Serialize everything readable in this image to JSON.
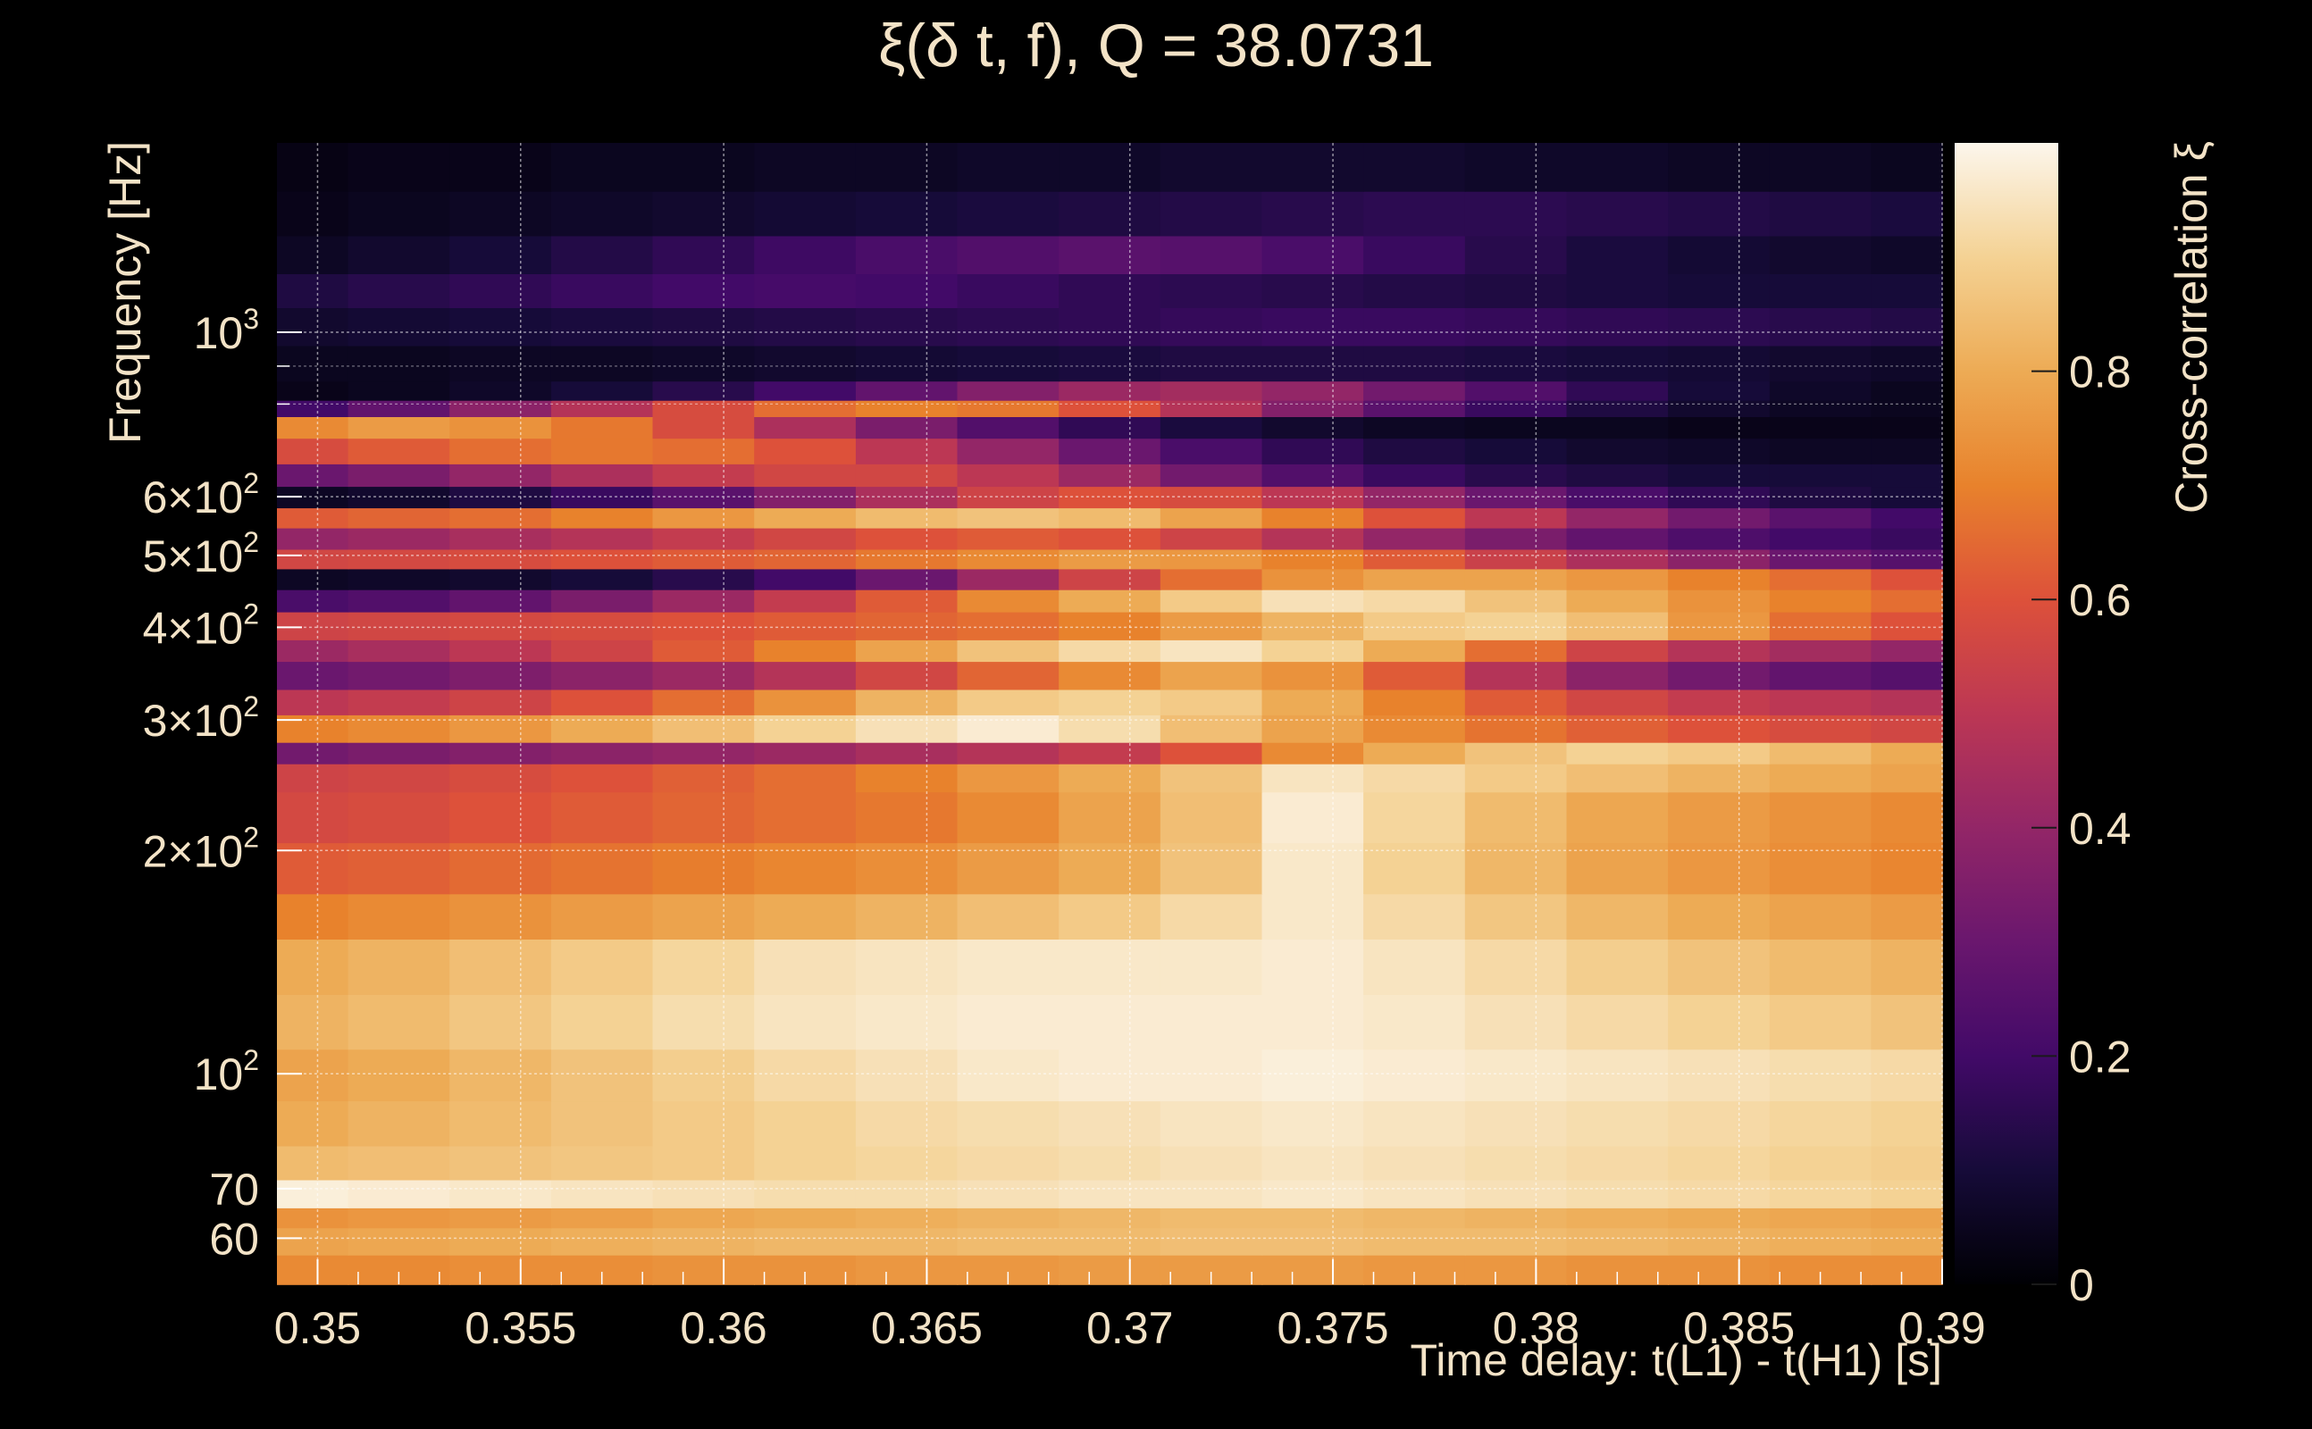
{
  "chart_data": {
    "type": "heatmap",
    "title": "ξ(δ t, f), Q = 38.0731",
    "xlabel": "Time delay: t(L1) - t(H1) [s]",
    "ylabel": "Frequency [Hz]",
    "colorbar_label": "Cross-correlation ξ",
    "xlim": [
      0.349,
      0.39
    ],
    "ylim": [
      52,
      1800
    ],
    "y_scale": "log",
    "zlim": [
      0,
      1
    ],
    "grid": true,
    "colormap": "inferno",
    "x_ticks": [
      {
        "value": 0.35,
        "label": "0.35"
      },
      {
        "value": 0.355,
        "label": "0.355"
      },
      {
        "value": 0.36,
        "label": "0.36"
      },
      {
        "value": 0.365,
        "label": "0.365"
      },
      {
        "value": 0.37,
        "label": "0.37"
      },
      {
        "value": 0.375,
        "label": "0.375"
      },
      {
        "value": 0.38,
        "label": "0.38"
      },
      {
        "value": 0.385,
        "label": "0.385"
      },
      {
        "value": 0.39,
        "label": "0.39"
      }
    ],
    "y_ticks": [
      {
        "value": 60,
        "label": "60"
      },
      {
        "value": 70,
        "label": "70"
      },
      {
        "value": 100,
        "label": "10",
        "exponent": "2"
      },
      {
        "value": 200,
        "label": "2×10",
        "exponent": "2"
      },
      {
        "value": 300,
        "label": "3×10",
        "exponent": "2"
      },
      {
        "value": 400,
        "label": "4×10",
        "exponent": "2"
      },
      {
        "value": 500,
        "label": "5×10",
        "exponent": "2"
      },
      {
        "value": 600,
        "label": "6×10",
        "exponent": "2"
      },
      {
        "value": 1000,
        "label": "10",
        "exponent": "3"
      }
    ],
    "colorbar_ticks": [
      {
        "value": 0,
        "label": "0"
      },
      {
        "value": 0.2,
        "label": "0.2"
      },
      {
        "value": 0.4,
        "label": "0.4"
      },
      {
        "value": 0.6,
        "label": "0.6"
      },
      {
        "value": 0.8,
        "label": "0.8"
      }
    ],
    "time_columns": [
      0.3495,
      0.352,
      0.3545,
      0.357,
      0.3595,
      0.362,
      0.3645,
      0.367,
      0.3695,
      0.372,
      0.3745,
      0.377,
      0.3795,
      0.382,
      0.3845,
      0.387,
      0.3895
    ],
    "bands": [
      {
        "f_low": 52,
        "f_high": 57,
        "xi": [
          0.72,
          0.72,
          0.73,
          0.73,
          0.74,
          0.74,
          0.75,
          0.75,
          0.76,
          0.76,
          0.76,
          0.75,
          0.75,
          0.74,
          0.74,
          0.73,
          0.73
        ]
      },
      {
        "f_low": 57,
        "f_high": 62,
        "xi": [
          0.78,
          0.79,
          0.8,
          0.81,
          0.82,
          0.83,
          0.83,
          0.84,
          0.84,
          0.85,
          0.85,
          0.84,
          0.84,
          0.83,
          0.82,
          0.81,
          0.8
        ]
      },
      {
        "f_low": 62,
        "f_high": 66,
        "xi": [
          0.74,
          0.75,
          0.76,
          0.77,
          0.79,
          0.8,
          0.81,
          0.82,
          0.83,
          0.84,
          0.84,
          0.83,
          0.82,
          0.81,
          0.8,
          0.79,
          0.78
        ]
      },
      {
        "f_low": 66,
        "f_high": 72,
        "xi": [
          0.98,
          0.97,
          0.96,
          0.95,
          0.94,
          0.93,
          0.93,
          0.94,
          0.95,
          0.95,
          0.96,
          0.95,
          0.94,
          0.93,
          0.92,
          0.91,
          0.9
        ]
      },
      {
        "f_low": 72,
        "f_high": 80,
        "xi": [
          0.84,
          0.85,
          0.86,
          0.87,
          0.88,
          0.9,
          0.91,
          0.92,
          0.93,
          0.94,
          0.95,
          0.94,
          0.93,
          0.92,
          0.91,
          0.9,
          0.89
        ]
      },
      {
        "f_low": 80,
        "f_high": 92,
        "xi": [
          0.8,
          0.82,
          0.84,
          0.86,
          0.88,
          0.9,
          0.92,
          0.93,
          0.94,
          0.95,
          0.96,
          0.95,
          0.94,
          0.93,
          0.92,
          0.91,
          0.9
        ]
      },
      {
        "f_low": 92,
        "f_high": 108,
        "xi": [
          0.78,
          0.8,
          0.83,
          0.86,
          0.89,
          0.92,
          0.94,
          0.96,
          0.97,
          0.97,
          0.98,
          0.97,
          0.96,
          0.95,
          0.94,
          0.93,
          0.92
        ]
      },
      {
        "f_low": 108,
        "f_high": 128,
        "xi": [
          0.82,
          0.84,
          0.87,
          0.9,
          0.93,
          0.95,
          0.96,
          0.97,
          0.97,
          0.97,
          0.97,
          0.96,
          0.94,
          0.92,
          0.9,
          0.88,
          0.86
        ]
      },
      {
        "f_low": 128,
        "f_high": 152,
        "xi": [
          0.8,
          0.82,
          0.85,
          0.88,
          0.91,
          0.94,
          0.95,
          0.96,
          0.96,
          0.96,
          0.97,
          0.95,
          0.92,
          0.89,
          0.86,
          0.84,
          0.82
        ]
      },
      {
        "f_low": 152,
        "f_high": 175,
        "xi": [
          0.7,
          0.72,
          0.74,
          0.76,
          0.78,
          0.8,
          0.82,
          0.85,
          0.88,
          0.92,
          0.96,
          0.92,
          0.87,
          0.83,
          0.8,
          0.78,
          0.76
        ]
      },
      {
        "f_low": 175,
        "f_high": 205,
        "xi": [
          0.62,
          0.63,
          0.65,
          0.67,
          0.69,
          0.71,
          0.73,
          0.76,
          0.8,
          0.86,
          0.96,
          0.9,
          0.83,
          0.78,
          0.75,
          0.73,
          0.71
        ]
      },
      {
        "f_low": 205,
        "f_high": 240,
        "xi": [
          0.57,
          0.58,
          0.6,
          0.62,
          0.64,
          0.66,
          0.68,
          0.72,
          0.78,
          0.85,
          0.97,
          0.91,
          0.84,
          0.79,
          0.76,
          0.74,
          0.72
        ]
      },
      {
        "f_low": 240,
        "f_high": 262,
        "xi": [
          0.55,
          0.56,
          0.58,
          0.6,
          0.63,
          0.66,
          0.7,
          0.75,
          0.8,
          0.86,
          0.95,
          0.92,
          0.88,
          0.85,
          0.82,
          0.8,
          0.78
        ]
      },
      {
        "f_low": 262,
        "f_high": 280,
        "xi": [
          0.32,
          0.34,
          0.36,
          0.38,
          0.4,
          0.42,
          0.45,
          0.48,
          0.52,
          0.6,
          0.72,
          0.8,
          0.86,
          0.9,
          0.88,
          0.84,
          0.8
        ]
      },
      {
        "f_low": 280,
        "f_high": 305,
        "xi": [
          0.7,
          0.72,
          0.75,
          0.8,
          0.85,
          0.9,
          0.94,
          0.97,
          0.93,
          0.85,
          0.78,
          0.72,
          0.67,
          0.63,
          0.6,
          0.58,
          0.56
        ]
      },
      {
        "f_low": 305,
        "f_high": 330,
        "xi": [
          0.5,
          0.52,
          0.55,
          0.6,
          0.66,
          0.74,
          0.82,
          0.88,
          0.9,
          0.88,
          0.8,
          0.7,
          0.62,
          0.56,
          0.52,
          0.5,
          0.48
        ]
      },
      {
        "f_low": 330,
        "f_high": 360,
        "xi": [
          0.3,
          0.32,
          0.35,
          0.38,
          0.42,
          0.48,
          0.56,
          0.64,
          0.72,
          0.78,
          0.74,
          0.62,
          0.48,
          0.38,
          0.32,
          0.28,
          0.25
        ]
      },
      {
        "f_low": 360,
        "f_high": 385,
        "xi": [
          0.42,
          0.45,
          0.5,
          0.55,
          0.62,
          0.7,
          0.78,
          0.86,
          0.92,
          0.95,
          0.9,
          0.8,
          0.66,
          0.55,
          0.48,
          0.44,
          0.4
        ]
      },
      {
        "f_low": 385,
        "f_high": 420,
        "xi": [
          0.55,
          0.56,
          0.57,
          0.58,
          0.6,
          0.62,
          0.64,
          0.66,
          0.7,
          0.76,
          0.82,
          0.88,
          0.9,
          0.85,
          0.75,
          0.66,
          0.6
        ]
      },
      {
        "f_low": 420,
        "f_high": 450,
        "xi": [
          0.22,
          0.24,
          0.28,
          0.34,
          0.42,
          0.52,
          0.62,
          0.72,
          0.8,
          0.88,
          0.94,
          0.92,
          0.86,
          0.8,
          0.74,
          0.7,
          0.66
        ]
      },
      {
        "f_low": 450,
        "f_high": 480,
        "xi": [
          0.06,
          0.07,
          0.08,
          0.1,
          0.14,
          0.2,
          0.3,
          0.42,
          0.55,
          0.66,
          0.74,
          0.78,
          0.78,
          0.75,
          0.7,
          0.66,
          0.6
        ]
      },
      {
        "f_low": 480,
        "f_high": 510,
        "xi": [
          0.56,
          0.57,
          0.58,
          0.6,
          0.62,
          0.64,
          0.68,
          0.72,
          0.76,
          0.75,
          0.7,
          0.62,
          0.54,
          0.46,
          0.38,
          0.3,
          0.25
        ]
      },
      {
        "f_low": 510,
        "f_high": 545,
        "xi": [
          0.4,
          0.42,
          0.45,
          0.48,
          0.52,
          0.56,
          0.6,
          0.62,
          0.6,
          0.55,
          0.48,
          0.4,
          0.34,
          0.28,
          0.23,
          0.2,
          0.18
        ]
      },
      {
        "f_low": 545,
        "f_high": 580,
        "xi": [
          0.62,
          0.64,
          0.66,
          0.7,
          0.75,
          0.8,
          0.84,
          0.86,
          0.84,
          0.78,
          0.7,
          0.6,
          0.5,
          0.4,
          0.32,
          0.26,
          0.2
        ]
      },
      {
        "f_low": 580,
        "f_high": 620,
        "xi": [
          0.06,
          0.08,
          0.12,
          0.18,
          0.26,
          0.36,
          0.46,
          0.55,
          0.6,
          0.58,
          0.5,
          0.4,
          0.3,
          0.22,
          0.16,
          0.12,
          0.1
        ]
      },
      {
        "f_low": 620,
        "f_high": 665,
        "xi": [
          0.3,
          0.34,
          0.4,
          0.46,
          0.52,
          0.56,
          0.56,
          0.5,
          0.42,
          0.32,
          0.24,
          0.18,
          0.14,
          0.12,
          0.1,
          0.1,
          0.1
        ]
      },
      {
        "f_low": 665,
        "f_high": 720,
        "xi": [
          0.58,
          0.62,
          0.66,
          0.68,
          0.66,
          0.6,
          0.5,
          0.4,
          0.3,
          0.22,
          0.16,
          0.12,
          0.1,
          0.08,
          0.07,
          0.06,
          0.06
        ]
      },
      {
        "f_low": 720,
        "f_high": 770,
        "xi": [
          0.72,
          0.76,
          0.74,
          0.68,
          0.58,
          0.46,
          0.34,
          0.24,
          0.16,
          0.11,
          0.08,
          0.06,
          0.05,
          0.05,
          0.04,
          0.04,
          0.04
        ]
      },
      {
        "f_low": 770,
        "f_high": 810,
        "xi": [
          0.2,
          0.28,
          0.38,
          0.48,
          0.58,
          0.66,
          0.7,
          0.68,
          0.6,
          0.48,
          0.36,
          0.26,
          0.18,
          0.12,
          0.08,
          0.06,
          0.05
        ]
      },
      {
        "f_low": 810,
        "f_high": 860,
        "xi": [
          0.04,
          0.05,
          0.07,
          0.1,
          0.14,
          0.2,
          0.28,
          0.36,
          0.42,
          0.44,
          0.4,
          0.32,
          0.24,
          0.16,
          0.1,
          0.07,
          0.05
        ]
      },
      {
        "f_low": 860,
        "f_high": 960,
        "xi": [
          0.05,
          0.05,
          0.06,
          0.06,
          0.07,
          0.08,
          0.09,
          0.1,
          0.11,
          0.12,
          0.12,
          0.12,
          0.11,
          0.1,
          0.09,
          0.08,
          0.07
        ]
      },
      {
        "f_low": 960,
        "f_high": 1080,
        "xi": [
          0.08,
          0.09,
          0.1,
          0.11,
          0.12,
          0.13,
          0.14,
          0.15,
          0.16,
          0.17,
          0.18,
          0.18,
          0.17,
          0.16,
          0.15,
          0.14,
          0.13
        ]
      },
      {
        "f_low": 1080,
        "f_high": 1200,
        "xi": [
          0.12,
          0.14,
          0.16,
          0.18,
          0.2,
          0.21,
          0.2,
          0.18,
          0.16,
          0.15,
          0.14,
          0.13,
          0.12,
          0.11,
          0.1,
          0.1,
          0.1
        ]
      },
      {
        "f_low": 1200,
        "f_high": 1350,
        "xi": [
          0.06,
          0.08,
          0.1,
          0.13,
          0.16,
          0.19,
          0.22,
          0.24,
          0.26,
          0.25,
          0.22,
          0.18,
          0.14,
          0.11,
          0.09,
          0.08,
          0.07
        ]
      },
      {
        "f_low": 1350,
        "f_high": 1550,
        "xi": [
          0.04,
          0.05,
          0.06,
          0.07,
          0.08,
          0.09,
          0.1,
          0.11,
          0.12,
          0.13,
          0.14,
          0.15,
          0.15,
          0.14,
          0.13,
          0.12,
          0.11
        ]
      },
      {
        "f_low": 1550,
        "f_high": 1800,
        "xi": [
          0.03,
          0.04,
          0.04,
          0.05,
          0.05,
          0.06,
          0.06,
          0.07,
          0.07,
          0.08,
          0.08,
          0.08,
          0.07,
          0.07,
          0.06,
          0.06,
          0.05
        ]
      }
    ]
  }
}
